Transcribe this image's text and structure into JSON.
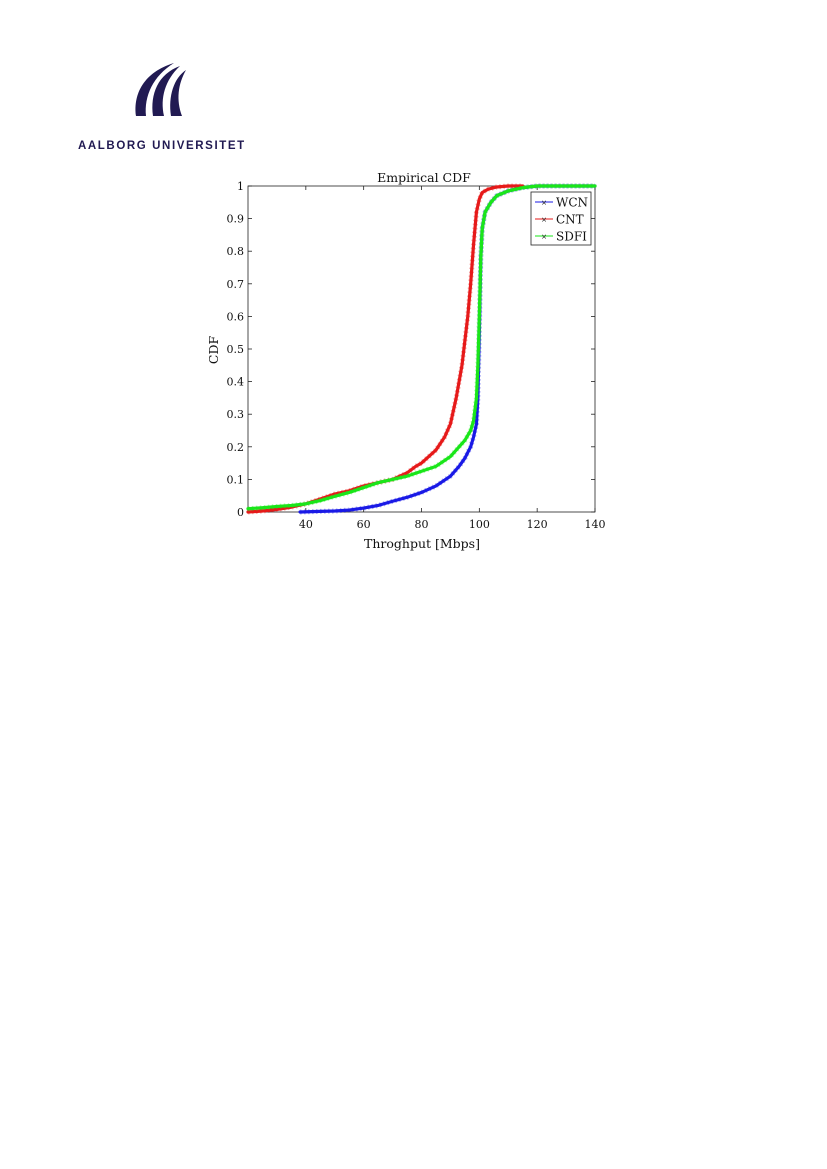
{
  "logo": {
    "name": "AALBORG UNIVERSITET",
    "color": "#211a52"
  },
  "chart_data": {
    "type": "line",
    "title": "Empirical CDF",
    "xlabel": "Throghput [Mbps]",
    "ylabel": "CDF",
    "xlim": [
      20,
      140
    ],
    "ylim": [
      0,
      1
    ],
    "xticks": [
      40,
      60,
      80,
      100,
      120,
      140
    ],
    "xtick_labels": [
      "40",
      "60",
      "80",
      "100",
      "120",
      "140"
    ],
    "yticks": [
      0,
      0.1,
      0.2,
      0.3,
      0.4,
      0.5,
      0.6,
      0.7,
      0.8,
      0.9,
      1
    ],
    "ytick_labels": [
      "0",
      "0.1",
      "0.2",
      "0.3",
      "0.4",
      "0.5",
      "0.6",
      "0.7",
      "0.8",
      "0.9",
      "1"
    ],
    "grid": false,
    "legend_position": "top-right",
    "series": [
      {
        "name": "WCN",
        "color": "#1a1ae6",
        "marker": "x",
        "x": [
          38,
          45,
          50,
          55,
          60,
          65,
          70,
          75,
          80,
          85,
          90,
          93,
          95,
          97,
          98,
          99,
          99.5,
          100,
          100.5,
          101,
          102,
          104,
          106,
          110,
          115,
          120,
          140
        ],
        "y": [
          0,
          0.002,
          0.003,
          0.006,
          0.012,
          0.02,
          0.033,
          0.045,
          0.06,
          0.08,
          0.11,
          0.14,
          0.165,
          0.2,
          0.23,
          0.27,
          0.35,
          0.55,
          0.78,
          0.87,
          0.92,
          0.95,
          0.97,
          0.985,
          0.995,
          1,
          1
        ]
      },
      {
        "name": "CNT",
        "color": "#e61a1a",
        "marker": "x",
        "x": [
          20,
          25,
          30,
          35,
          40,
          45,
          50,
          55,
          60,
          65,
          70,
          75,
          78,
          80,
          85,
          88,
          90,
          92,
          94,
          96,
          97,
          98,
          99,
          100,
          101,
          103,
          106,
          110,
          115
        ],
        "y": [
          0,
          0.003,
          0.008,
          0.015,
          0.025,
          0.04,
          0.055,
          0.065,
          0.08,
          0.09,
          0.1,
          0.12,
          0.14,
          0.15,
          0.19,
          0.23,
          0.27,
          0.35,
          0.45,
          0.6,
          0.7,
          0.82,
          0.92,
          0.96,
          0.98,
          0.99,
          0.997,
          1,
          1
        ]
      },
      {
        "name": "SDFI",
        "color": "#1ae61a",
        "marker": "x",
        "x": [
          20,
          25,
          30,
          35,
          40,
          45,
          50,
          55,
          60,
          65,
          70,
          75,
          80,
          85,
          90,
          93,
          95,
          97,
          98,
          99,
          99.5,
          100,
          100.5,
          101,
          102,
          104,
          106,
          110,
          115,
          120,
          130,
          140
        ],
        "y": [
          0.01,
          0.013,
          0.017,
          0.02,
          0.025,
          0.035,
          0.048,
          0.06,
          0.075,
          0.09,
          0.1,
          0.11,
          0.125,
          0.14,
          0.17,
          0.2,
          0.22,
          0.25,
          0.28,
          0.35,
          0.45,
          0.6,
          0.78,
          0.87,
          0.92,
          0.95,
          0.97,
          0.985,
          0.995,
          1,
          1,
          1
        ]
      }
    ]
  }
}
